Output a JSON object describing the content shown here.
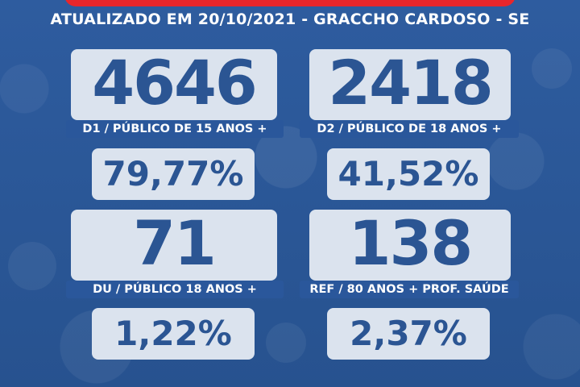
{
  "header": {
    "subtitle": "ATUALIZADO EM 20/10/2021 - GRACCHO CARDOSO - SE"
  },
  "colors": {
    "background": "#2a5799",
    "card": "#dbe3ee",
    "number": "#2b5593",
    "banner": "#e8262b"
  },
  "stats": [
    {
      "count": "4646",
      "label": "D1 / PÚBLICO DE 15 ANOS +",
      "percent": "79,77%"
    },
    {
      "count": "2418",
      "label": "D2 / PÚBLICO DE 18 ANOS +",
      "percent": "41,52%"
    },
    {
      "count": "71",
      "label": "DU / PÚBLICO 18 ANOS +",
      "percent": "1,22%"
    },
    {
      "count": "138",
      "label": "REF / 80 ANOS + PROF. SAÚDE",
      "percent": "2,37%"
    }
  ]
}
